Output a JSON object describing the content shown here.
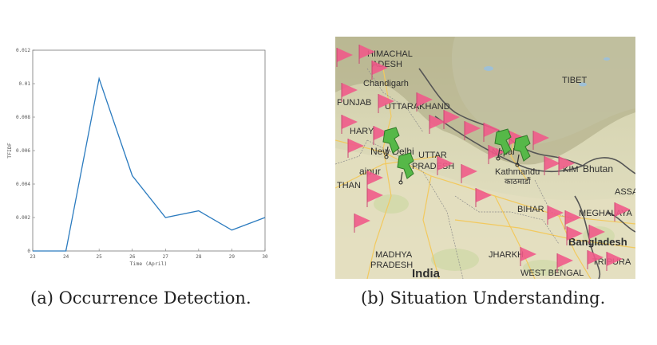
{
  "chart_data": {
    "type": "line",
    "x": [
      23,
      24,
      25,
      26,
      27,
      28,
      29,
      30
    ],
    "series": [
      {
        "values": [
          0,
          0,
          0.0103,
          0.0045,
          0.002,
          0.0024,
          0.00125,
          0.002
        ],
        "color": "#2b7bbf"
      }
    ],
    "xlabel": "Time (April)",
    "ylabel": "TFIDF",
    "xlim": [
      23,
      30
    ],
    "ylim": [
      0,
      0.012
    ],
    "xticks": [
      "23",
      "24",
      "25",
      "26",
      "27",
      "28",
      "29",
      "30"
    ],
    "yticks": [
      "0",
      "0.002",
      "0.004",
      "0.006",
      "0.008",
      "0.01",
      "0.012"
    ],
    "grid": false
  },
  "map": {
    "labels": {
      "himachal": "HIMACHAL",
      "pradesh_hp": "ADESH",
      "chandigarh": "Chandigarh",
      "punjab": "PUNJAB",
      "uttarakhand": "UTTARAKHAND",
      "haryana": "HARY",
      "new_delhi": "New Delhi",
      "uttar": "UTTAR",
      "pradesh_up": "PRADESH",
      "jaipur": "aipur",
      "rajasthan": "THAN",
      "tibet": "TIBET",
      "nepal": "Nepal",
      "kathmandu": "Kathmandu",
      "kathmandu_dev": "काठमाडौं",
      "sikkim": "KIM",
      "bhutan": "Bhutan",
      "assam": "ASSA",
      "bihar": "BIHAR",
      "meghalaya": "MEGHALAYA",
      "bangladesh": "Bangladesh",
      "madhya": "MADHYA",
      "pradesh_mp": "PRADESH",
      "jharkhand": "JHARKH",
      "india": "India",
      "west_bengal": "WEST BENGAL",
      "tripura": "TRIPURA"
    },
    "marker_color": "#f05b8a",
    "pin_color": "#56b848"
  },
  "captions": {
    "a": "(a) Occurrence Detection.",
    "b": "(b) Situation Understanding."
  }
}
